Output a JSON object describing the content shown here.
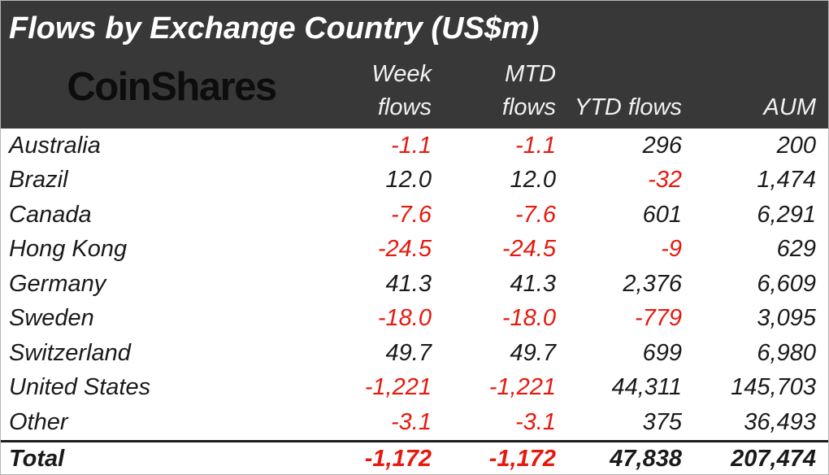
{
  "title": "Flows by Exchange Country (US$m)",
  "logo_text": "CoinShares",
  "columns": {
    "week": {
      "line1": "Week",
      "line2": "flows"
    },
    "mtd": {
      "line1": "MTD",
      "line2": "flows"
    },
    "ytd": {
      "line2": "YTD flows"
    },
    "aum": {
      "line2": "AUM"
    }
  },
  "rows": [
    {
      "country": "Australia",
      "week": "-1.1",
      "mtd": "-1.1",
      "ytd": "296",
      "aum": "200"
    },
    {
      "country": "Brazil",
      "week": "12.0",
      "mtd": "12.0",
      "ytd": "-32",
      "aum": "1,474"
    },
    {
      "country": "Canada",
      "week": "-7.6",
      "mtd": "-7.6",
      "ytd": "601",
      "aum": "6,291"
    },
    {
      "country": "Hong Kong",
      "week": "-24.5",
      "mtd": "-24.5",
      "ytd": "-9",
      "aum": "629"
    },
    {
      "country": "Germany",
      "week": "41.3",
      "mtd": "41.3",
      "ytd": "2,376",
      "aum": "6,609"
    },
    {
      "country": "Sweden",
      "week": "-18.0",
      "mtd": "-18.0",
      "ytd": "-779",
      "aum": "3,095"
    },
    {
      "country": "Switzerland",
      "week": "49.7",
      "mtd": "49.7",
      "ytd": "699",
      "aum": "6,980"
    },
    {
      "country": "United States",
      "week": "-1,221",
      "mtd": "-1,221",
      "ytd": "44,311",
      "aum": "145,703"
    },
    {
      "country": "Other",
      "week": "-3.1",
      "mtd": "-3.1",
      "ytd": "375",
      "aum": "36,493"
    }
  ],
  "total": {
    "country": "Total",
    "week": "-1,172",
    "mtd": "-1,172",
    "ytd": "47,838",
    "aum": "207,474"
  },
  "colors": {
    "negative": "#e7180d",
    "header_bg": "#383838",
    "text": "#1a1a1a",
    "header_text": "#ffffff"
  },
  "chart_data": {
    "type": "table",
    "title": "Flows by Exchange Country (US$m)",
    "categories": [
      "Australia",
      "Brazil",
      "Canada",
      "Hong Kong",
      "Germany",
      "Sweden",
      "Switzerland",
      "United States",
      "Other",
      "Total"
    ],
    "series": [
      {
        "name": "Week flows",
        "values": [
          -1.1,
          12.0,
          -7.6,
          -24.5,
          41.3,
          -18.0,
          49.7,
          -1221,
          -3.1,
          -1172
        ]
      },
      {
        "name": "MTD flows",
        "values": [
          -1.1,
          12.0,
          -7.6,
          -24.5,
          41.3,
          -18.0,
          49.7,
          -1221,
          -3.1,
          -1172
        ]
      },
      {
        "name": "YTD flows",
        "values": [
          296,
          -32,
          601,
          -9,
          2376,
          -779,
          699,
          44311,
          375,
          47838
        ]
      },
      {
        "name": "AUM",
        "values": [
          200,
          1474,
          6291,
          629,
          6609,
          3095,
          6980,
          145703,
          36493,
          207474
        ]
      }
    ],
    "units": "US$m",
    "negative_values_color": "#e7180d"
  }
}
